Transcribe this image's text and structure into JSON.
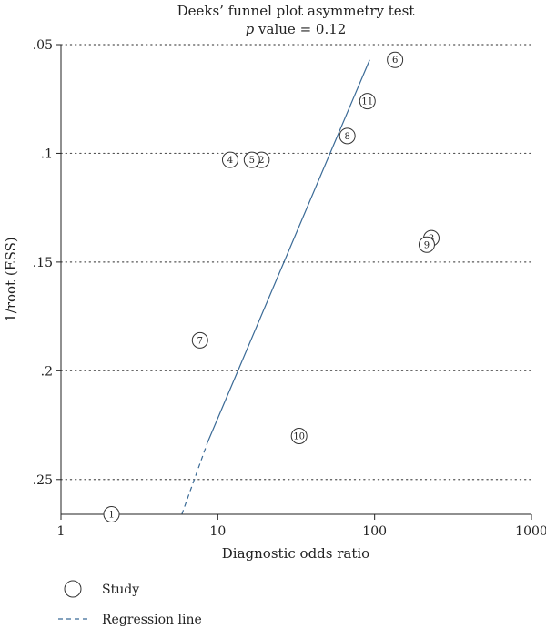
{
  "chart_data": {
    "type": "scatter",
    "title": "Deeks’ funnel plot asymmetry test",
    "subtitle_prefix": "p",
    "subtitle_suffix": " value = 0.12",
    "xlabel": "Diagnostic odds ratio",
    "ylabel": "1/root (ESS)",
    "x_scale": "log",
    "xlim": [
      1,
      1000
    ],
    "ylim": [
      0.266,
      0.05
    ],
    "y_inverted": true,
    "x_ticks": [
      {
        "value": 1,
        "label": "1"
      },
      {
        "value": 10,
        "label": "10"
      },
      {
        "value": 100,
        "label": "100"
      },
      {
        "value": 1000,
        "label": "1000"
      }
    ],
    "y_ticks": [
      {
        "value": 0.05,
        "label": ".05"
      },
      {
        "value": 0.1,
        "label": ".1"
      },
      {
        "value": 0.15,
        "label": ".15"
      },
      {
        "value": 0.2,
        "label": ".2"
      },
      {
        "value": 0.25,
        "label": ".25"
      }
    ],
    "grid": "horizontal dotted",
    "points": [
      {
        "label": "1",
        "x": 2.1,
        "y": 0.266
      },
      {
        "label": "2",
        "x": 19,
        "y": 0.103
      },
      {
        "label": "3",
        "x": 230,
        "y": 0.139
      },
      {
        "label": "4",
        "x": 12,
        "y": 0.103
      },
      {
        "label": "5",
        "x": 16.5,
        "y": 0.103
      },
      {
        "label": "6",
        "x": 135,
        "y": 0.057
      },
      {
        "label": "7",
        "x": 7.7,
        "y": 0.186
      },
      {
        "label": "8",
        "x": 67,
        "y": 0.092
      },
      {
        "label": "9",
        "x": 215,
        "y": 0.142
      },
      {
        "label": "10",
        "x": 33,
        "y": 0.23
      },
      {
        "label": "11",
        "x": 90,
        "y": 0.076
      }
    ],
    "regression_line": {
      "dashed": [
        {
          "x": 5.9,
          "y": 0.266
        },
        {
          "x": 8.6,
          "y": 0.233
        }
      ],
      "solid": [
        {
          "x": 8.6,
          "y": 0.233
        },
        {
          "x": 93,
          "y": 0.057
        }
      ]
    },
    "legend": {
      "placement": "bottom-left",
      "items": [
        {
          "symbol": "circle",
          "label": "Study"
        },
        {
          "symbol": "dashed-line",
          "label": "Regression line"
        }
      ]
    },
    "colors": {
      "regression": "#3a6a96",
      "marker": "#333333",
      "grid": "#555555",
      "axis": "#222222"
    }
  }
}
